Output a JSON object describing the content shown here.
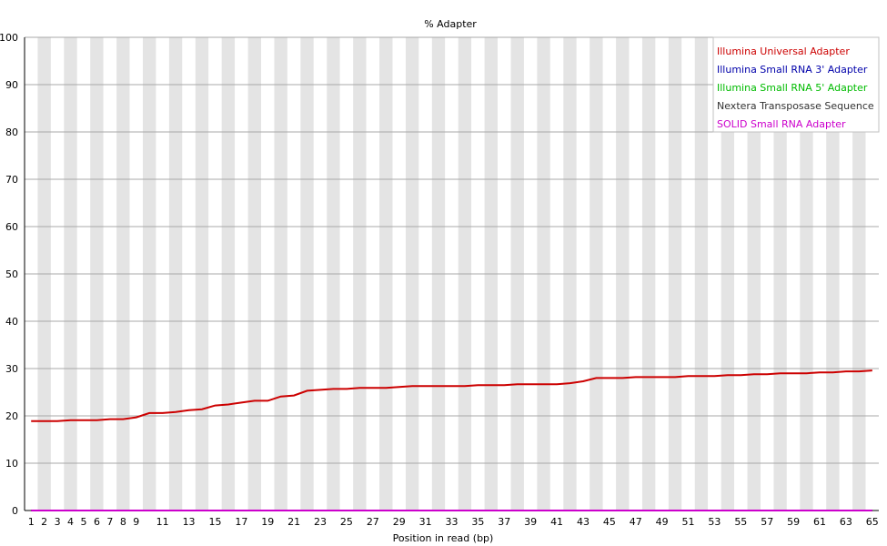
{
  "chart_data": {
    "type": "line",
    "title": "% Adapter",
    "xlabel": "Position in read (bp)",
    "ylabel": "",
    "ylim": [
      0,
      100
    ],
    "yticks": [
      "0",
      "10",
      "20",
      "30",
      "40",
      "50",
      "60",
      "70",
      "80",
      "90",
      "100"
    ],
    "xtick_labels": [
      "1",
      "2",
      "3",
      "4",
      "5",
      "6",
      "7",
      "8",
      "9",
      "11",
      "13",
      "15",
      "17",
      "19",
      "21",
      "23",
      "25",
      "27",
      "29",
      "31",
      "33",
      "35",
      "37",
      "39",
      "41",
      "43",
      "45",
      "47",
      "49",
      "51",
      "53",
      "55",
      "57",
      "59",
      "61",
      "63",
      "65"
    ],
    "x": [
      1,
      2,
      3,
      4,
      5,
      6,
      7,
      8,
      9,
      10,
      11,
      12,
      13,
      14,
      15,
      16,
      17,
      18,
      19,
      20,
      21,
      22,
      23,
      24,
      25,
      26,
      27,
      28,
      29,
      30,
      31,
      32,
      33,
      34,
      35,
      36,
      37,
      38,
      39,
      40,
      41,
      42,
      43,
      44,
      45,
      46,
      47,
      48,
      49,
      50,
      51,
      52,
      53,
      54,
      55,
      56,
      57,
      58,
      59,
      60,
      61,
      62,
      63,
      64,
      65
    ],
    "grid": true,
    "legend_position": "top-right",
    "series": [
      {
        "name": "Illumina Universal Adapter",
        "color": "#cc0000",
        "values": [
          18.9,
          18.9,
          18.9,
          19.1,
          19.1,
          19.1,
          19.3,
          19.3,
          19.7,
          20.6,
          20.6,
          20.8,
          21.2,
          21.4,
          22.2,
          22.4,
          22.8,
          23.2,
          23.2,
          24.1,
          24.3,
          25.3,
          25.5,
          25.7,
          25.7,
          25.9,
          25.9,
          25.9,
          26.1,
          26.3,
          26.3,
          26.3,
          26.3,
          26.3,
          26.5,
          26.5,
          26.5,
          26.7,
          26.7,
          26.7,
          26.7,
          26.9,
          27.3,
          28.0,
          28.0,
          28.0,
          28.2,
          28.2,
          28.2,
          28.2,
          28.4,
          28.4,
          28.4,
          28.6,
          28.6,
          28.8,
          28.8,
          29.0,
          29.0,
          29.0,
          29.2,
          29.2,
          29.4,
          29.4,
          29.6
        ]
      },
      {
        "name": "Illumina Small RNA 3' Adapter",
        "color": "#0000aa",
        "values": [
          0,
          0,
          0,
          0,
          0,
          0,
          0,
          0,
          0,
          0,
          0,
          0,
          0,
          0,
          0,
          0,
          0,
          0,
          0,
          0,
          0,
          0,
          0,
          0,
          0,
          0,
          0,
          0,
          0,
          0,
          0,
          0,
          0,
          0,
          0,
          0,
          0,
          0,
          0,
          0,
          0,
          0,
          0,
          0,
          0,
          0,
          0,
          0,
          0,
          0,
          0,
          0,
          0,
          0,
          0,
          0,
          0,
          0,
          0,
          0,
          0,
          0,
          0,
          0,
          0
        ]
      },
      {
        "name": "Illumina Small RNA 5' Adapter",
        "color": "#00bb00",
        "values": [
          0,
          0,
          0,
          0,
          0,
          0,
          0,
          0,
          0,
          0,
          0,
          0,
          0,
          0,
          0,
          0,
          0,
          0,
          0,
          0,
          0,
          0,
          0,
          0,
          0,
          0,
          0,
          0,
          0,
          0,
          0,
          0,
          0,
          0,
          0,
          0,
          0,
          0,
          0,
          0,
          0,
          0,
          0,
          0,
          0,
          0,
          0,
          0,
          0,
          0,
          0,
          0,
          0,
          0,
          0,
          0,
          0,
          0,
          0,
          0,
          0,
          0,
          0,
          0,
          0
        ]
      },
      {
        "name": "Nextera Transposase Sequence",
        "color": "#333333",
        "values": [
          0,
          0,
          0,
          0,
          0,
          0,
          0,
          0,
          0,
          0,
          0,
          0,
          0,
          0,
          0,
          0,
          0,
          0,
          0,
          0,
          0,
          0,
          0,
          0,
          0,
          0,
          0,
          0,
          0,
          0,
          0,
          0,
          0,
          0,
          0,
          0,
          0,
          0,
          0,
          0,
          0,
          0,
          0,
          0,
          0,
          0,
          0,
          0,
          0,
          0,
          0,
          0,
          0,
          0,
          0,
          0,
          0,
          0,
          0,
          0,
          0,
          0,
          0,
          0,
          0
        ]
      },
      {
        "name": "SOLID Small RNA Adapter",
        "color": "#cc00cc",
        "values": [
          0,
          0,
          0,
          0,
          0,
          0,
          0,
          0,
          0,
          0,
          0,
          0,
          0,
          0,
          0,
          0,
          0,
          0,
          0,
          0,
          0,
          0,
          0,
          0,
          0,
          0,
          0,
          0,
          0,
          0,
          0,
          0,
          0,
          0,
          0,
          0,
          0,
          0,
          0,
          0,
          0,
          0,
          0,
          0,
          0,
          0,
          0,
          0,
          0,
          0,
          0,
          0,
          0,
          0,
          0,
          0,
          0,
          0,
          0,
          0,
          0,
          0,
          0,
          0,
          0
        ]
      }
    ]
  }
}
